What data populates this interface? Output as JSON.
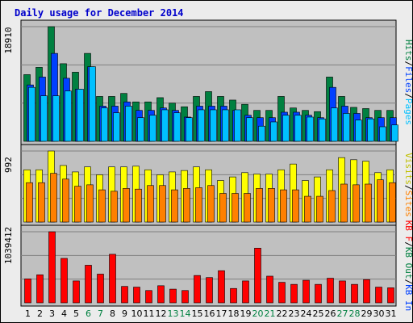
{
  "colors": {
    "background": "#ececec",
    "plot": "#c0c0c0",
    "grid": "#808080",
    "frame": "#000000",
    "title": "#0000cc",
    "weekday": "#000000",
    "weekend": "#008040"
  },
  "chart_data": {
    "type": "bar",
    "title": "Daily usage for December 2014",
    "categories": [
      "1",
      "2",
      "3",
      "4",
      "5",
      "6",
      "7",
      "8",
      "9",
      "10",
      "11",
      "12",
      "13",
      "14",
      "15",
      "16",
      "17",
      "18",
      "19",
      "20",
      "21",
      "22",
      "23",
      "24",
      "25",
      "26",
      "27",
      "28",
      "29",
      "30",
      "31"
    ],
    "weekend_days": [
      "6",
      "7",
      "13",
      "14",
      "20",
      "21",
      "27",
      "28"
    ],
    "panels": [
      {
        "name": "hits-files-pages",
        "ymax": 18910,
        "ymax_label": "18910",
        "legend": [
          {
            "text": "Hits",
            "color": "#008040"
          },
          {
            "text": "/",
            "color": "#000000"
          },
          {
            "text": "Files",
            "color": "#0040ff"
          },
          {
            "text": "/",
            "color": "#000000"
          },
          {
            "text": "Pages",
            "color": "#00c0ff"
          }
        ],
        "series": [
          {
            "name": "Hits",
            "color": "#008040",
            "values": [
              11000,
              12200,
              18910,
              12800,
              11400,
              14500,
              7400,
              7400,
              7900,
              6500,
              6500,
              7200,
              6300,
              5700,
              7400,
              8200,
              7400,
              6800,
              6100,
              5100,
              5100,
              7400,
              5500,
              5100,
              4900,
              10600,
              7400,
              5600,
              5400,
              5100,
              5100
            ]
          },
          {
            "name": "Files",
            "color": "#0040ff",
            "values": [
              9300,
              10600,
              14500,
              10400,
              8600,
              12300,
              5800,
              5800,
              6500,
              5100,
              5100,
              5500,
              5100,
              4000,
              5800,
              5800,
              5800,
              5100,
              4300,
              3900,
              3900,
              4800,
              4800,
              4300,
              3900,
              8900,
              5800,
              4600,
              3900,
              3900,
              3900
            ]
          },
          {
            "name": "Pages",
            "color": "#00c0ff",
            "values": [
              8900,
              7500,
              7500,
              8300,
              8600,
              12300,
              5500,
              4700,
              5800,
              3900,
              4300,
              5200,
              4700,
              3900,
              5200,
              5200,
              5200,
              5200,
              3900,
              2500,
              3200,
              4300,
              4300,
              4000,
              3700,
              5500,
              4600,
              3500,
              3700,
              2400,
              2700
            ]
          }
        ]
      },
      {
        "name": "visits-sites",
        "ymax": 992,
        "ymax_label": "992",
        "legend": [
          {
            "text": "Visits",
            "color": "#c0c000"
          },
          {
            "text": "/",
            "color": "#000000"
          },
          {
            "text": "Sites",
            "color": "#ff8000"
          }
        ],
        "series": [
          {
            "name": "Visits",
            "color": "#ffff00",
            "values": [
              730,
              730,
              992,
              790,
              700,
              770,
              660,
              770,
              770,
              780,
              730,
              660,
              700,
              720,
              770,
              730,
              580,
              630,
              690,
              670,
              670,
              730,
              810,
              580,
              630,
              730,
              900,
              870,
              850,
              690,
              730
            ]
          },
          {
            "name": "Sites",
            "color": "#ff8000",
            "values": [
              550,
              550,
              680,
              600,
              500,
              520,
              450,
              430,
              470,
              460,
              510,
              510,
              450,
              470,
              480,
              510,
              400,
              400,
              400,
              470,
              470,
              450,
              450,
              360,
              360,
              440,
              530,
              520,
              530,
              590,
              550
            ]
          }
        ]
      },
      {
        "name": "kbytes",
        "ymax": 1039412,
        "ymax_label": "1039412",
        "legend": [
          {
            "text": "KB F",
            "color": "#ff0000"
          },
          {
            "text": "/",
            "color": "#000000"
          },
          {
            "text": "KB Out",
            "color": "#008040"
          },
          {
            "text": "/",
            "color": "#000000"
          },
          {
            "text": "KB In",
            "color": "#0040ff"
          }
        ],
        "series": [
          {
            "name": "KB F",
            "color": "#ff0000",
            "values": [
              350000,
              410000,
              1039412,
              650000,
              320000,
              550000,
              420000,
              710000,
              240000,
              230000,
              180000,
              250000,
              200000,
              180000,
              400000,
              370000,
              470000,
              210000,
              320000,
              800000,
              390000,
              300000,
              270000,
              330000,
              270000,
              360000,
              320000,
              270000,
              340000,
              230000,
              220000
            ]
          }
        ]
      }
    ]
  }
}
